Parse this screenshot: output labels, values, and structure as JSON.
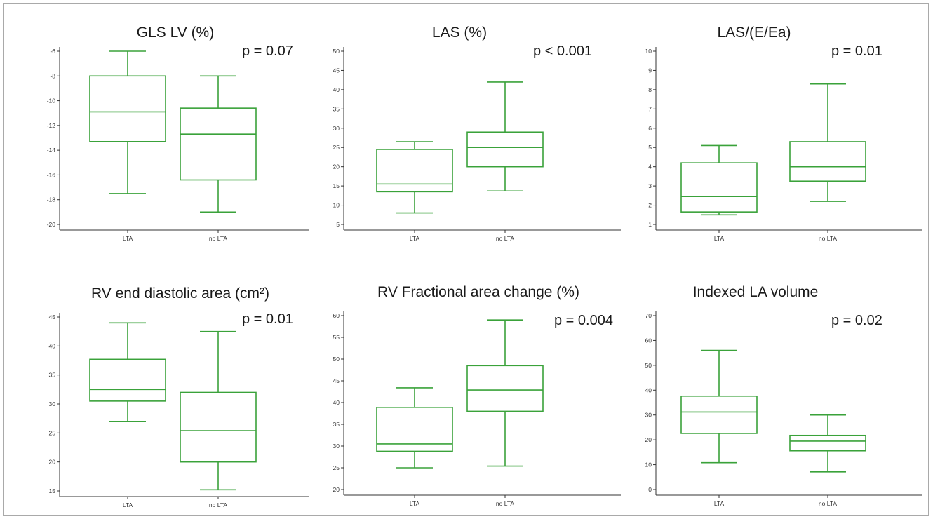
{
  "colors": {
    "box": "#3aa23a",
    "axis": "#333333",
    "text": "#1a1a1a"
  },
  "chart_data": [
    {
      "type": "box",
      "title": "GLS LV (%)",
      "annotation": "p = 0.07",
      "categories": [
        "LTA",
        "no LTA"
      ],
      "ylim": [
        -20,
        -6
      ],
      "yticks": [
        -6,
        -8,
        -10,
        -12,
        -14,
        -16,
        -18,
        -20
      ],
      "boxes": [
        {
          "name": "LTA",
          "min": -17.5,
          "q1": -13.3,
          "median": -10.9,
          "q3": -8.0,
          "max": -6.0
        },
        {
          "name": "no LTA",
          "min": -19.0,
          "q1": -16.4,
          "median": -12.7,
          "q3": -10.6,
          "max": -8.0
        }
      ]
    },
    {
      "type": "box",
      "title": "LAS (%)",
      "annotation": "p < 0.001",
      "categories": [
        "LTA",
        "no LTA"
      ],
      "ylim": [
        5,
        50
      ],
      "yticks": [
        50,
        45,
        40,
        35,
        30,
        25,
        20,
        15,
        10,
        5
      ],
      "boxes": [
        {
          "name": "LTA",
          "min": 8.0,
          "q1": 13.5,
          "median": 15.5,
          "q3": 24.5,
          "max": 26.5
        },
        {
          "name": "no LTA",
          "min": 13.7,
          "q1": 20.0,
          "median": 25.0,
          "q3": 29.0,
          "max": 42.0
        }
      ]
    },
    {
      "type": "box",
      "title": "LAS/(E/Ea)",
      "annotation": "p = 0.01",
      "categories": [
        "LTA",
        "no LTA"
      ],
      "ylim": [
        1,
        10
      ],
      "yticks": [
        10,
        9,
        8,
        7,
        6,
        5,
        4,
        3,
        2,
        1
      ],
      "boxes": [
        {
          "name": "LTA",
          "min": 1.5,
          "q1": 1.65,
          "median": 2.45,
          "q3": 4.2,
          "max": 5.1
        },
        {
          "name": "no LTA",
          "min": 2.2,
          "q1": 3.25,
          "median": 4.0,
          "q3": 5.3,
          "max": 8.3
        }
      ]
    },
    {
      "type": "box",
      "title": "RV end diastolic area (cm²)",
      "annotation": "p = 0.01",
      "categories": [
        "LTA",
        "no LTA"
      ],
      "ylim": [
        15,
        45
      ],
      "yticks": [
        45,
        40,
        35,
        30,
        25,
        20,
        15
      ],
      "boxes": [
        {
          "name": "LTA",
          "min": 27.0,
          "q1": 30.5,
          "median": 32.5,
          "q3": 37.7,
          "max": 44.0
        },
        {
          "name": "no LTA",
          "min": 15.2,
          "q1": 20.0,
          "median": 25.4,
          "q3": 32.0,
          "max": 42.5
        }
      ]
    },
    {
      "type": "box",
      "title": "RV Fractional area change (%)",
      "annotation": "p = 0.004",
      "categories": [
        "LTA",
        "no LTA"
      ],
      "ylim": [
        20,
        60
      ],
      "yticks": [
        60,
        55,
        50,
        45,
        40,
        35,
        30,
        25,
        20
      ],
      "boxes": [
        {
          "name": "LTA",
          "min": 25.0,
          "q1": 28.8,
          "median": 30.5,
          "q3": 38.9,
          "max": 43.4
        },
        {
          "name": "no LTA",
          "min": 25.4,
          "q1": 38.0,
          "median": 42.9,
          "q3": 48.5,
          "max": 59.0
        }
      ]
    },
    {
      "type": "box",
      "title": "Indexed LA volume",
      "annotation": "p = 0.02",
      "categories": [
        "LTA",
        "no LTA"
      ],
      "ylim": [
        0,
        70
      ],
      "yticks": [
        70,
        60,
        50,
        40,
        30,
        20,
        10,
        0
      ],
      "boxes": [
        {
          "name": "LTA",
          "min": 10.8,
          "q1": 22.6,
          "median": 31.2,
          "q3": 37.6,
          "max": 56.0
        },
        {
          "name": "no LTA",
          "min": 7.1,
          "q1": 15.6,
          "median": 19.5,
          "q3": 21.8,
          "max": 30.0
        }
      ]
    }
  ]
}
